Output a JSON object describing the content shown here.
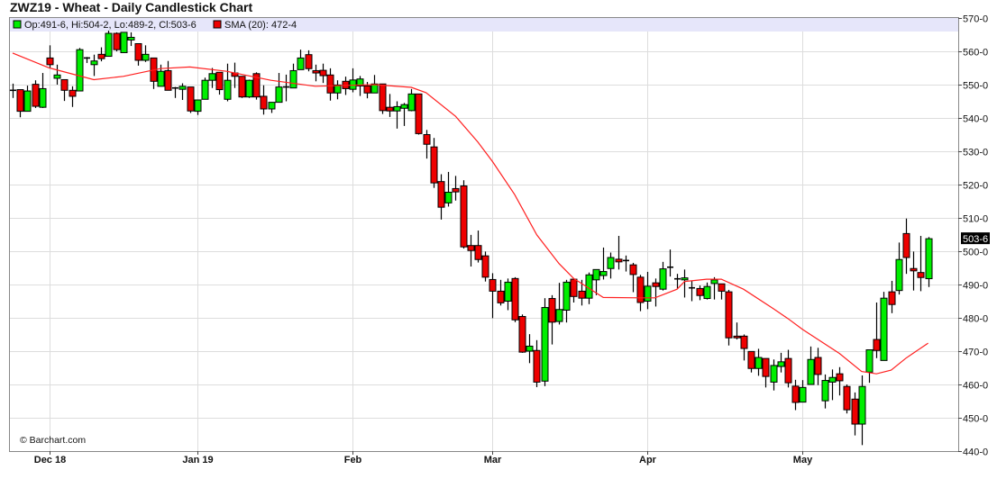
{
  "title": "ZWZ19 - Wheat - Daily Candlestick Chart",
  "legend": {
    "ohlc_label": "Op:491-6, Hi:504-2, Lo:489-2, Cl:503-6",
    "sma_label": "SMA (20): 472-4",
    "ohlc_color": "#00ee00",
    "sma_color": "#ee0000"
  },
  "copyright": "© Barchart.com",
  "last_price_label": "503-6",
  "colors": {
    "up": "#00ee00",
    "down": "#ee0000",
    "sma": "#ff2020",
    "legend_bg": "#e6e6fa",
    "grid": "#dddddd"
  },
  "chart_data": {
    "type": "candlestick",
    "title": "ZWZ19 - Wheat - Daily Candlestick Chart",
    "ylim": [
      440,
      570
    ],
    "yticks": [
      440,
      450,
      460,
      470,
      480,
      490,
      500,
      510,
      520,
      530,
      540,
      550,
      560,
      570
    ],
    "ytick_labels": [
      "440-0",
      "450-0",
      "460-0",
      "470-0",
      "480-0",
      "490-0",
      "500-0",
      "510-0",
      "520-0",
      "530-0",
      "540-0",
      "550-0",
      "560-0",
      "570-0"
    ],
    "xtick_labels": [
      {
        "date": "2018-12-03",
        "label": "Dec 18"
      },
      {
        "date": "2019-01-02",
        "label": "Jan 19"
      },
      {
        "date": "2019-02-01",
        "label": "Feb"
      },
      {
        "date": "2019-03-01",
        "label": "Mar"
      },
      {
        "date": "2019-04-01",
        "label": "Apr"
      },
      {
        "date": "2019-05-01",
        "label": "May"
      }
    ],
    "grid": true,
    "legend_placement": "top-left",
    "dates": [
      "2018-11-26",
      "2018-11-27",
      "2018-11-28",
      "2018-11-29",
      "2018-11-30",
      "2018-12-03",
      "2018-12-04",
      "2018-12-05",
      "2018-12-06",
      "2018-12-07",
      "2018-12-10",
      "2018-12-11",
      "2018-12-12",
      "2018-12-13",
      "2018-12-14",
      "2018-12-17",
      "2018-12-18",
      "2018-12-19",
      "2018-12-20",
      "2018-12-21",
      "2018-12-24",
      "2018-12-26",
      "2018-12-27",
      "2018-12-28",
      "2018-12-31",
      "2019-01-02",
      "2019-01-03",
      "2019-01-04",
      "2019-01-07",
      "2019-01-08",
      "2019-01-09",
      "2019-01-10",
      "2019-01-11",
      "2019-01-14",
      "2019-01-15",
      "2019-01-16",
      "2019-01-17",
      "2019-01-18",
      "2019-01-22",
      "2019-01-23",
      "2019-01-24",
      "2019-01-25",
      "2019-01-28",
      "2019-01-29",
      "2019-01-30",
      "2019-01-31",
      "2019-02-01",
      "2019-02-04",
      "2019-02-05",
      "2019-02-06",
      "2019-02-07",
      "2019-02-08",
      "2019-02-11",
      "2019-02-12",
      "2019-02-13",
      "2019-02-14",
      "2019-02-15",
      "2019-02-19",
      "2019-02-20",
      "2019-02-21",
      "2019-02-22",
      "2019-02-25",
      "2019-02-26",
      "2019-02-27",
      "2019-02-28",
      "2019-03-01",
      "2019-03-04",
      "2019-03-05",
      "2019-03-06",
      "2019-03-07",
      "2019-03-08",
      "2019-03-11",
      "2019-03-12",
      "2019-03-13",
      "2019-03-14",
      "2019-03-15",
      "2019-03-18",
      "2019-03-19",
      "2019-03-20",
      "2019-03-21",
      "2019-03-22",
      "2019-03-25",
      "2019-03-26",
      "2019-03-27",
      "2019-03-28",
      "2019-03-29",
      "2019-04-01",
      "2019-04-02",
      "2019-04-03",
      "2019-04-04",
      "2019-04-05",
      "2019-04-08",
      "2019-04-09",
      "2019-04-10",
      "2019-04-11",
      "2019-04-12",
      "2019-04-15",
      "2019-04-16",
      "2019-04-17",
      "2019-04-18",
      "2019-04-22",
      "2019-04-23",
      "2019-04-24",
      "2019-04-25",
      "2019-04-26",
      "2019-04-29",
      "2019-04-30",
      "2019-05-01",
      "2019-05-02",
      "2019-05-03",
      "2019-05-06",
      "2019-05-07",
      "2019-05-08",
      "2019-05-09",
      "2019-05-10",
      "2019-05-13",
      "2019-05-14",
      "2019-05-15",
      "2019-05-16",
      "2019-05-17",
      "2019-05-20",
      "2019-05-21",
      "2019-05-22",
      "2019-05-23",
      "2019-05-24"
    ],
    "ohlc": [
      [
        548.3,
        550.3,
        546,
        548.3
      ],
      [
        548.5,
        548.5,
        540.2,
        542
      ],
      [
        542,
        549.7,
        542,
        548.1
      ],
      [
        550.1,
        551.3,
        543,
        543.5
      ],
      [
        543.2,
        553.5,
        543,
        548.8
      ],
      [
        558,
        561.8,
        555,
        556
      ],
      [
        551.9,
        556,
        550,
        552.9
      ],
      [
        551.5,
        551.5,
        545.1,
        548.3
      ],
      [
        548.3,
        549.5,
        543.3,
        546.5
      ],
      [
        548.1,
        561,
        548,
        560.5
      ],
      [
        558,
        558.3,
        556.5,
        558
      ],
      [
        556,
        559,
        552.6,
        557.1
      ],
      [
        559.1,
        561.2,
        557,
        557.8
      ],
      [
        558.5,
        566.2,
        558.5,
        565.4
      ],
      [
        565.4,
        565.7,
        560,
        560.5
      ],
      [
        559.6,
        565.8,
        559.6,
        565.7
      ],
      [
        563.4,
        565.7,
        561.6,
        564.2
      ],
      [
        562.3,
        562.3,
        555.7,
        557.3
      ],
      [
        557.3,
        561.8,
        556.8,
        559.1
      ],
      [
        558,
        558,
        548.7,
        551
      ],
      [
        549.5,
        556,
        549.5,
        554
      ],
      [
        554.2,
        557.1,
        548.3,
        548.3
      ],
      [
        549,
        549.3,
        546,
        549
      ],
      [
        548.6,
        550.4,
        545.4,
        549.5
      ],
      [
        549.3,
        549.3,
        541.5,
        542.1
      ],
      [
        542,
        545.5,
        540.9,
        545.4
      ],
      [
        545.6,
        552.1,
        545.6,
        551.3
      ],
      [
        551.3,
        555,
        549,
        553.3
      ],
      [
        553.7,
        553.7,
        547,
        548.5
      ],
      [
        545.6,
        556.3,
        545,
        551.3
      ],
      [
        553.5,
        556.6,
        549,
        552.5
      ],
      [
        552.5,
        552.5,
        546,
        546.3
      ],
      [
        546.3,
        551.5,
        546,
        551.3
      ],
      [
        553.3,
        553.7,
        545.5,
        546.3
      ],
      [
        546.5,
        549.8,
        541,
        542.7
      ],
      [
        542.7,
        544.7,
        541.5,
        544.7
      ],
      [
        544.7,
        553.5,
        544.7,
        549.3
      ],
      [
        549.3,
        553,
        545,
        549.3
      ],
      [
        549,
        556.3,
        549,
        554.2
      ],
      [
        554.5,
        560.5,
        554.5,
        558
      ],
      [
        559,
        560.3,
        554,
        554.8
      ],
      [
        554.2,
        556,
        551,
        553.5
      ],
      [
        554.3,
        556.3,
        550.5,
        552.7
      ],
      [
        552.9,
        554.9,
        545.2,
        547.5
      ],
      [
        547.5,
        551.3,
        545.6,
        549.9
      ],
      [
        551,
        552.4,
        546.9,
        548.8
      ],
      [
        548.6,
        554.9,
        547.7,
        551.4
      ],
      [
        549.6,
        552.6,
        546.6,
        551.7
      ],
      [
        549.6,
        550.8,
        545.9,
        547.5
      ],
      [
        547.5,
        552.9,
        547.5,
        550.2
      ],
      [
        550.2,
        550.2,
        541.2,
        542.2
      ],
      [
        543.2,
        547.2,
        540.3,
        542.1
      ],
      [
        542.1,
        545,
        536.8,
        543.4
      ],
      [
        542.9,
        544.5,
        537.6,
        544
      ],
      [
        542.2,
        548.7,
        542,
        547.2
      ],
      [
        547.2,
        547.2,
        535,
        535.3
      ],
      [
        535,
        536.4,
        527.8,
        532.1
      ],
      [
        531.3,
        534,
        519,
        520.5
      ],
      [
        520.9,
        523.1,
        509.5,
        513.2
      ],
      [
        514.5,
        523.8,
        513.4,
        517.7
      ],
      [
        518.8,
        522.6,
        515.2,
        517.8
      ],
      [
        519.6,
        521.3,
        500.8,
        501.3
      ],
      [
        501.7,
        504.9,
        495.4,
        500.2
      ],
      [
        501.7,
        506.2,
        496.6,
        497.5
      ],
      [
        498.6,
        499.9,
        490.9,
        492.2
      ],
      [
        491.5,
        493.4,
        479.9,
        488
      ],
      [
        488,
        491.4,
        483.7,
        484.5
      ],
      [
        485,
        491.8,
        482.3,
        490.7
      ],
      [
        491.8,
        492.2,
        478.7,
        479.4
      ],
      [
        480.4,
        481,
        469.5,
        469.7
      ],
      [
        470,
        475.1,
        466.4,
        471.5
      ],
      [
        470.2,
        473.3,
        459.2,
        460.7
      ],
      [
        461,
        485.9,
        459.5,
        483.1
      ],
      [
        485.8,
        486.8,
        472,
        478.7
      ],
      [
        478.9,
        490.5,
        478,
        482.5
      ],
      [
        482.3,
        491.4,
        478.6,
        490.7
      ],
      [
        491.6,
        491.6,
        484.6,
        486.4
      ],
      [
        488,
        491.4,
        483.7,
        485.9
      ],
      [
        485.9,
        493.6,
        484.1,
        492.9
      ],
      [
        491.4,
        494.5,
        486.8,
        494.5
      ],
      [
        492.7,
        501.1,
        491.5,
        493.9
      ],
      [
        494.8,
        499.6,
        491.8,
        498.1
      ],
      [
        497.6,
        504.6,
        494.5,
        496.8
      ],
      [
        497.2,
        498.7,
        493.9,
        497.2
      ],
      [
        495.9,
        496.5,
        487.7,
        493
      ],
      [
        492.2,
        492.9,
        482,
        484.6
      ],
      [
        485,
        493.8,
        482.6,
        489.5
      ],
      [
        490.5,
        491.8,
        483.4,
        489.4
      ],
      [
        488.6,
        496.8,
        488.2,
        494.7
      ],
      [
        495.2,
        500.5,
        492.4,
        495.2
      ],
      [
        491.7,
        493.2,
        488.8,
        491.7
      ],
      [
        491.4,
        494.5,
        486.1,
        492
      ],
      [
        489,
        491.2,
        485,
        489
      ],
      [
        488.8,
        489.7,
        485.3,
        486.7
      ],
      [
        485.8,
        490.6,
        485.5,
        489.4
      ],
      [
        490.3,
        492.2,
        485.5,
        491.4
      ],
      [
        490.2,
        490.2,
        485.5,
        488
      ],
      [
        487.8,
        488.4,
        471.7,
        474
      ],
      [
        474.5,
        478.6,
        473.5,
        474
      ],
      [
        474.5,
        475,
        467.2,
        470.8
      ],
      [
        469.9,
        469.9,
        463.6,
        464.8
      ],
      [
        464.8,
        470.7,
        462.6,
        468.1
      ],
      [
        467.8,
        467.8,
        459.1,
        462.4
      ],
      [
        460.7,
        467.5,
        458.2,
        465.7
      ],
      [
        465.4,
        469.5,
        463.6,
        466.8
      ],
      [
        467.8,
        470.4,
        459.1,
        460.5
      ],
      [
        459.5,
        461.4,
        452.3,
        454.6
      ],
      [
        454.7,
        461.3,
        454.7,
        459.1
      ],
      [
        460,
        471.4,
        460,
        467.5
      ],
      [
        468.1,
        471,
        459.8,
        463
      ],
      [
        455.1,
        463,
        452.8,
        461.2
      ],
      [
        460.7,
        464.5,
        455.3,
        462.1
      ],
      [
        463.2,
        465.2,
        456.7,
        461.1
      ],
      [
        459.4,
        460,
        451.3,
        452.4
      ],
      [
        455.6,
        457.6,
        444.7,
        448.1
      ],
      [
        448.1,
        462.7,
        441.8,
        459.4
      ],
      [
        463.7,
        470.4,
        460.5,
        470.4
      ],
      [
        473.5,
        484.6,
        467.9,
        470.2
      ],
      [
        467.2,
        487.8,
        467.2,
        485.9
      ],
      [
        487.8,
        491.1,
        481.4,
        484
      ],
      [
        488.2,
        502.6,
        487,
        497.5
      ],
      [
        505.3,
        509.8,
        493.2,
        498.1
      ],
      [
        494.8,
        499.9,
        488.2,
        494.1
      ],
      [
        493.6,
        504.6,
        488,
        492.1
      ],
      [
        491.75,
        504.25,
        489.25,
        503.75
      ]
    ],
    "sma20": {
      "name": "SMA (20)",
      "points": [
        [
          "2018-11-26",
          559.5
        ],
        [
          "2018-12-03",
          555
        ],
        [
          "2018-12-11",
          551.5
        ],
        [
          "2018-12-17",
          552.5
        ],
        [
          "2018-12-24",
          554.8
        ],
        [
          "2018-12-31",
          555.3
        ],
        [
          "2019-01-08",
          554
        ],
        [
          "2019-01-16",
          551.3
        ],
        [
          "2019-01-25",
          549.5
        ],
        [
          "2019-02-06",
          550
        ],
        [
          "2019-02-13",
          549.2
        ],
        [
          "2019-02-15",
          547.6
        ],
        [
          "2019-02-22",
          540.5
        ],
        [
          "2019-02-27",
          532.8
        ],
        [
          "2019-03-01",
          526.9
        ],
        [
          "2019-03-06",
          517
        ],
        [
          "2019-03-11",
          504.9
        ],
        [
          "2019-03-14",
          496.3
        ],
        [
          "2019-03-18",
          491.8
        ],
        [
          "2019-03-19",
          490.4
        ],
        [
          "2019-03-22",
          486.1
        ],
        [
          "2019-03-29",
          486
        ],
        [
          "2019-04-02",
          486
        ],
        [
          "2019-04-05",
          488.6
        ],
        [
          "2019-04-08",
          490.9
        ],
        [
          "2019-04-11",
          491.6
        ],
        [
          "2019-04-15",
          491.6
        ],
        [
          "2019-04-18",
          488.6
        ],
        [
          "2019-04-25",
          482.8
        ],
        [
          "2019-04-29",
          479.8
        ],
        [
          "2019-05-01",
          476.5
        ],
        [
          "2019-05-08",
          469.3
        ],
        [
          "2019-05-13",
          463.9
        ],
        [
          "2019-05-15",
          463.2
        ],
        [
          "2019-05-17",
          464.3
        ],
        [
          "2019-05-21",
          467.9
        ],
        [
          "2019-05-24",
          472.4
        ]
      ]
    },
    "last_price": 503.75
  }
}
